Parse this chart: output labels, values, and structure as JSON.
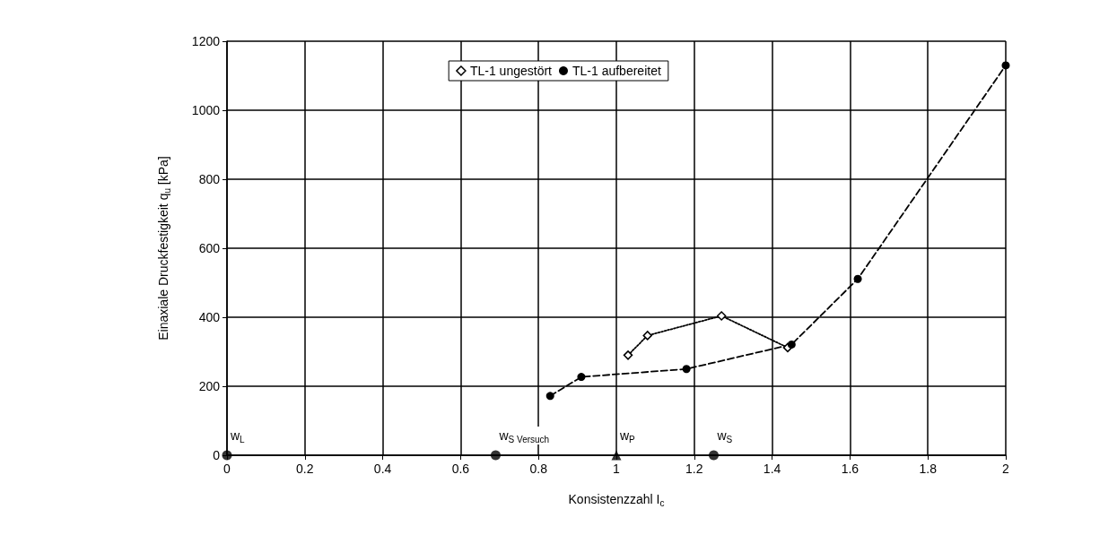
{
  "chart_data": {
    "type": "line",
    "xlabel": "Konsistenzzahl I$_{c}$",
    "ylabel": "Einaxiale Druckfestigkeit q$_{u}$ [kPa]",
    "series": [
      {
        "name": "TL-1 ungestört",
        "color": "#000000",
        "marker": "diamond",
        "line_style": "dotted",
        "x": [
          1.03,
          1.08,
          1.27,
          1.44
        ],
        "values": [
          290,
          347,
          404,
          312
        ]
      },
      {
        "name": "TL-1 aufbereitet",
        "color": "#000000",
        "marker": "circle",
        "line_style": "dashed",
        "x": [
          0.83,
          0.91,
          1.18,
          1.45,
          1.62,
          2.0
        ],
        "values": [
          172,
          227,
          250,
          321,
          511,
          1130
        ]
      },
      {
        "type": "scatter",
        "color": "#000000",
        "marker": "circle",
        "x": [
          0,
          0.69,
          1.25
        ],
        "values": [
          0,
          0,
          0
        ]
      },
      {
        "type": "scatter",
        "color": "#000000",
        "marker": "triangle",
        "x": [
          1.0
        ],
        "values": [
          0
        ]
      }
    ],
    "annotations": [
      {
        "text": "w$_{L}$",
        "x": 0,
        "y": 0
      },
      {
        "text": "w$_{S Versuch}$",
        "x": 0.69,
        "y": 0
      },
      {
        "text": "w$_{P}$",
        "x": 1.0,
        "y": 0
      },
      {
        "text": "w$_{S}$",
        "x": 1.25,
        "y": 0
      }
    ],
    "xlim": [
      0,
      2
    ],
    "xticks": [
      0,
      0.2,
      0.4,
      0.6,
      0.8,
      1,
      1.2,
      1.4,
      1.6,
      1.8,
      2
    ],
    "ylim": [
      0,
      1200
    ],
    "yticks": [
      0,
      200,
      400,
      600,
      800,
      1000,
      1200
    ],
    "grid": true,
    "legend": "top"
  }
}
